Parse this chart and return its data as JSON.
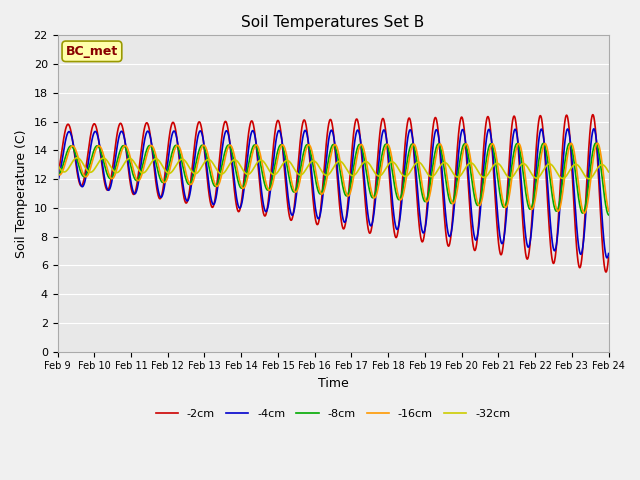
{
  "title": "Soil Temperatures Set B",
  "xlabel": "Time",
  "ylabel": "Soil Temperature (C)",
  "annotation": "BC_met",
  "ylim": [
    0,
    22
  ],
  "yticks": [
    0,
    2,
    4,
    6,
    8,
    10,
    12,
    14,
    16,
    18,
    20,
    22
  ],
  "x_tick_labels": [
    "Feb 9",
    "Feb 10",
    "Feb 11",
    "Feb 12",
    "Feb 13",
    "Feb 14",
    "Feb 15",
    "Feb 16",
    "Feb 17",
    "Feb 18",
    "Feb 19",
    "Feb 20",
    "Feb 21",
    "Feb 22",
    "Feb 23",
    "Feb 24"
  ],
  "colors": {
    "-2cm": "#cc0000",
    "-4cm": "#0000cc",
    "-8cm": "#00aa00",
    "-16cm": "#ff9900",
    "-32cm": "#cccc00"
  },
  "legend_labels": [
    "-2cm",
    "-4cm",
    "-8cm",
    "-16cm",
    "-32cm"
  ],
  "bg_color": "#e8e8e8",
  "grid_color": "#ffffff",
  "annotation_bg": "#ffffaa",
  "annotation_fg": "#880000",
  "linewidth": 1.2,
  "figsize": [
    6.4,
    4.8
  ],
  "dpi": 100
}
